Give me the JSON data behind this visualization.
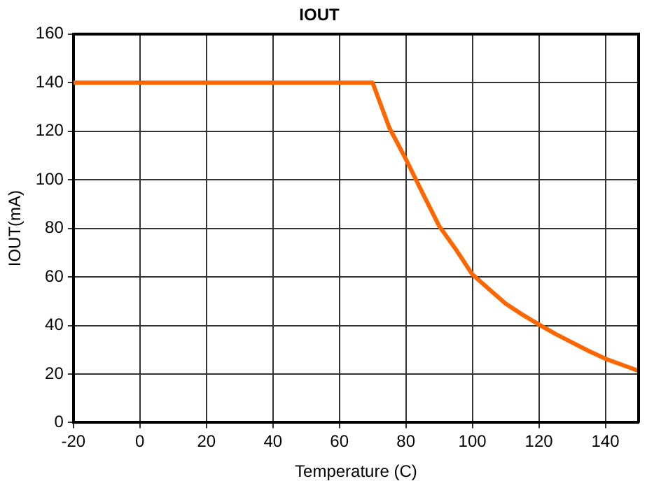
{
  "chart_data": {
    "type": "line",
    "title": "IOUT",
    "xlabel": "Temperature (C)",
    "ylabel": "IOUT(mA)",
    "x": [
      -20,
      70,
      75,
      80,
      85,
      90,
      95,
      100,
      105,
      110,
      115,
      120,
      125,
      130,
      135,
      140,
      145,
      150
    ],
    "series": [
      {
        "color": "#ff6600",
        "values": [
          140,
          140,
          121.5,
          108.5,
          94.6,
          81,
          71.4,
          61,
          55,
          49,
          44.5,
          40.4,
          36.5,
          33,
          29.5,
          26.3,
          23.8,
          21.3
        ]
      }
    ],
    "xlim": [
      -20,
      150
    ],
    "xticks": [
      -20,
      0,
      20,
      40,
      60,
      80,
      100,
      120,
      140
    ],
    "ylim": [
      0,
      160
    ],
    "yticks": [
      0,
      20,
      40,
      60,
      80,
      100,
      120,
      140,
      160
    ],
    "grid": true,
    "marker": "none",
    "line_style": "solid"
  }
}
